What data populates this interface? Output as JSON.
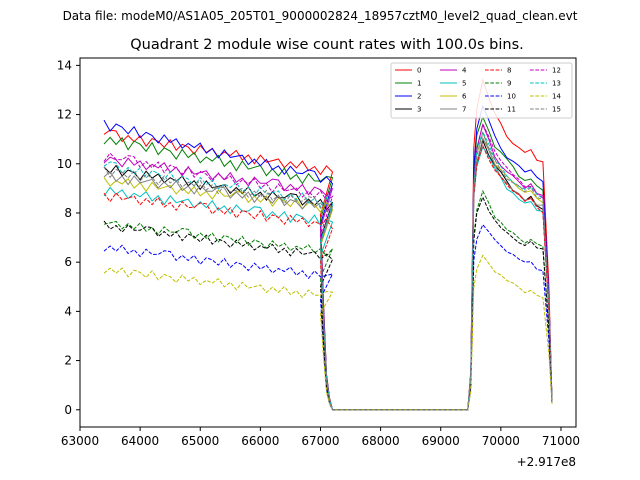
{
  "chart_data": {
    "type": "line",
    "suptitle": "Data file: modeM0/AS1A05_205T01_9000002824_18957cztM0_level2_quad_clean.evt",
    "title": "Quadrant 2 module wise count rates with 100.0s bins.",
    "xlabel": "",
    "ylabel": "",
    "x_offset_label": "+2.917e8",
    "xlim": [
      63000,
      71250
    ],
    "ylim": [
      -0.7,
      14.3
    ],
    "x_ticks": [
      63000,
      64000,
      65000,
      66000,
      67000,
      68000,
      69000,
      70000,
      71000
    ],
    "x_tick_labels": [
      "63000",
      "64000",
      "65000",
      "66000",
      "67000",
      "68000",
      "69000",
      "70000",
      "71000"
    ],
    "y_ticks": [
      0,
      2,
      4,
      6,
      8,
      10,
      12,
      14
    ],
    "y_tick_labels": [
      "0",
      "2",
      "4",
      "6",
      "8",
      "10",
      "12",
      "14"
    ],
    "legend_position": "top-right",
    "segment_a": {
      "x_start": 63400,
      "x_step": 100,
      "n": 39,
      "shape": [
        0,
        0.6,
        0.6,
        -0.5,
        0.3,
        -0.3,
        0.5,
        -0.6,
        0.4,
        0.2,
        -0.4,
        0.6,
        -0.5,
        0.3,
        0.1,
        -0.6,
        0.5,
        -0.2,
        0.4,
        -0.5,
        0.2,
        -0.1,
        0.6,
        -0.4,
        0.3,
        -0.6,
        0.5,
        -0.2,
        0.1,
        0.4,
        -0.5,
        0.3,
        -0.3,
        0.6,
        -0.4,
        0.2,
        -0.6,
        0.5,
        -0.1
      ]
    },
    "dropoff": {
      "x": [
        67000,
        67050,
        67100,
        67150,
        67200
      ],
      "factors": [
        0.82,
        0.45,
        0.15,
        0.05,
        0.0
      ]
    },
    "zero_segment": {
      "x_start": 67200,
      "x_end": 69450,
      "value": 0
    },
    "rise": {
      "x": [
        69450,
        69500,
        69550
      ],
      "factors": [
        0.0,
        0.12,
        0.8
      ]
    },
    "segment_b": {
      "x": [
        69600,
        69700,
        69800,
        69900,
        70000,
        70100,
        70200,
        70300,
        70400,
        70500,
        70600,
        70700
      ],
      "shape": [
        0.92,
        1.0,
        0.95,
        0.9,
        0.87,
        0.84,
        0.82,
        0.8,
        0.78,
        0.79,
        0.76,
        0.75
      ]
    },
    "tail": {
      "x": [
        70800,
        70850
      ],
      "factors": [
        0.5,
        0.02
      ]
    },
    "series": [
      {
        "name": "0",
        "color": "#ff0000",
        "dash": false,
        "start": 11.2,
        "end": 9.7,
        "b_level": 13.3,
        "noise": 0.35
      },
      {
        "name": "1",
        "color": "#008000",
        "dash": false,
        "start": 11.0,
        "end": 9.2,
        "b_level": 12.0,
        "noise": 0.4
      },
      {
        "name": "2",
        "color": "#0000ff",
        "dash": false,
        "start": 11.6,
        "end": 9.3,
        "b_level": 12.3,
        "noise": 0.35
      },
      {
        "name": "3",
        "color": "#000000",
        "dash": false,
        "start": 9.8,
        "end": 8.3,
        "b_level": 11.0,
        "noise": 0.35
      },
      {
        "name": "4",
        "color": "#bf00bf",
        "dash": false,
        "start": 10.2,
        "end": 8.8,
        "b_level": 11.5,
        "noise": 0.35
      },
      {
        "name": "5",
        "color": "#00bfbf",
        "dash": false,
        "start": 8.9,
        "end": 7.6,
        "b_level": 10.8,
        "noise": 0.35
      },
      {
        "name": "6",
        "color": "#bfbf00",
        "dash": false,
        "start": 9.3,
        "end": 8.2,
        "b_level": 11.2,
        "noise": 0.35
      },
      {
        "name": "7",
        "color": "#808080",
        "dash": false,
        "start": 9.5,
        "end": 8.2,
        "b_level": 11.0,
        "noise": 0.35
      },
      {
        "name": "8",
        "color": "#ff0000",
        "dash": true,
        "start": 8.7,
        "end": 7.5,
        "b_level": 10.8,
        "noise": 0.35
      },
      {
        "name": "9",
        "color": "#008000",
        "dash": true,
        "start": 7.6,
        "end": 6.4,
        "b_level": 8.8,
        "noise": 0.3
      },
      {
        "name": "10",
        "color": "#0000ff",
        "dash": true,
        "start": 6.6,
        "end": 5.4,
        "b_level": 7.6,
        "noise": 0.3
      },
      {
        "name": "11",
        "color": "#000000",
        "dash": true,
        "start": 7.5,
        "end": 6.2,
        "b_level": 8.6,
        "noise": 0.3
      },
      {
        "name": "12",
        "color": "#bf00bf",
        "dash": true,
        "start": 10.3,
        "end": 8.6,
        "b_level": 11.6,
        "noise": 0.35
      },
      {
        "name": "13",
        "color": "#00bfbf",
        "dash": true,
        "start": 9.9,
        "end": 8.4,
        "b_level": 11.4,
        "noise": 0.35
      },
      {
        "name": "14",
        "color": "#bfbf00",
        "dash": true,
        "start": 5.7,
        "end": 4.6,
        "b_level": 6.2,
        "noise": 0.3
      },
      {
        "name": "15",
        "color": "#808080",
        "dash": true,
        "start": 9.7,
        "end": 8.3,
        "b_level": 11.3,
        "noise": 0.35
      }
    ]
  }
}
